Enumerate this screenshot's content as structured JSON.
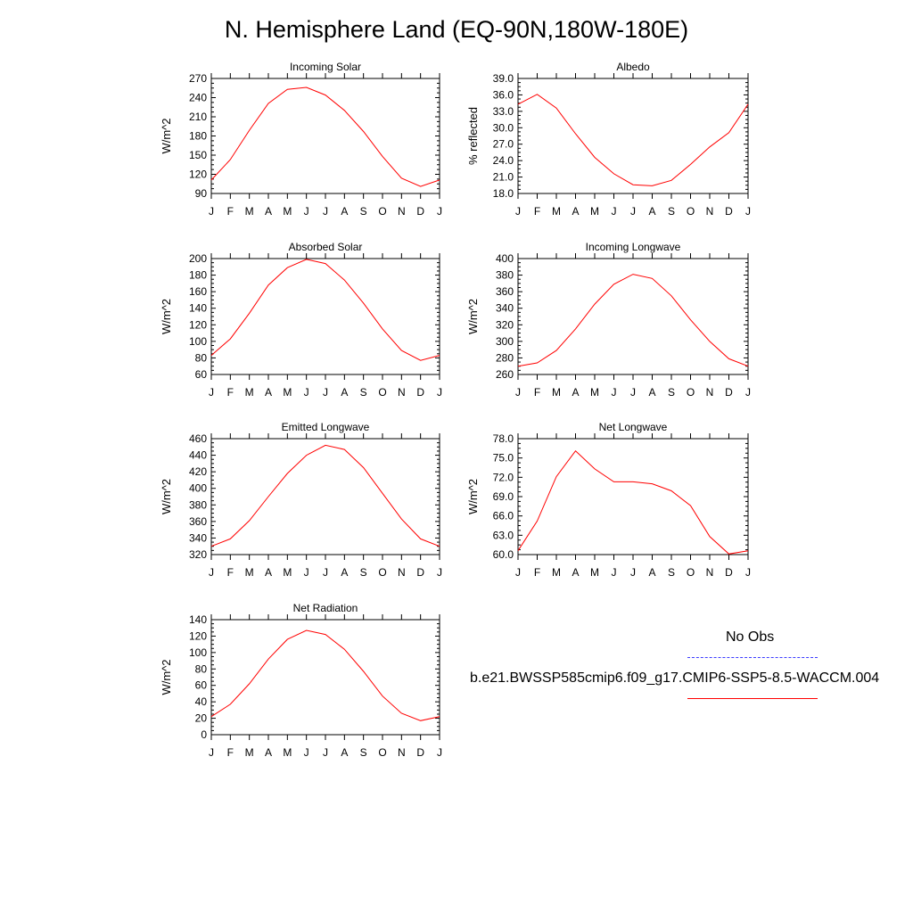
{
  "title": "N. Hemisphere Land (EQ-90N,180W-180E)",
  "legend": {
    "obs_label": "No Obs",
    "model_label": "b.e21.BWSSP585cmip6.f09_g17.CMIP6-SSP5-8.5-WACCM.004",
    "obs_color": "#3b3bff",
    "model_color": "#ff0000"
  },
  "chart_data": [
    {
      "type": "line",
      "title": "Incoming Solar",
      "ylabel": "W/m^2",
      "categories": [
        "J",
        "F",
        "M",
        "A",
        "M",
        "J",
        "J",
        "A",
        "S",
        "O",
        "N",
        "D",
        "J"
      ],
      "ylim": [
        90,
        270
      ],
      "yticks": [
        "90",
        "120",
        "150",
        "180",
        "210",
        "240",
        "270"
      ],
      "series": [
        {
          "values": [
            111,
            143,
            189,
            231,
            253,
            256,
            244,
            220,
            187,
            148,
            114,
            101,
            111
          ]
        }
      ]
    },
    {
      "type": "line",
      "title": "Albedo",
      "ylabel": "% reflected",
      "categories": [
        "J",
        "F",
        "M",
        "A",
        "M",
        "J",
        "J",
        "A",
        "S",
        "O",
        "N",
        "D",
        "J"
      ],
      "ylim": [
        18.0,
        39.0
      ],
      "yticks": [
        "18.0",
        "21.0",
        "24.0",
        "27.0",
        "30.0",
        "33.0",
        "36.0",
        "39.0"
      ],
      "series": [
        {
          "values": [
            34.3,
            36.1,
            33.6,
            28.9,
            24.6,
            21.6,
            19.6,
            19.4,
            20.4,
            23.3,
            26.5,
            29.1,
            34.3
          ]
        }
      ]
    },
    {
      "type": "line",
      "title": "Absorbed Solar",
      "ylabel": "W/m^2",
      "categories": [
        "J",
        "F",
        "M",
        "A",
        "M",
        "J",
        "J",
        "A",
        "S",
        "O",
        "N",
        "D",
        "J"
      ],
      "ylim": [
        60,
        200
      ],
      "yticks": [
        "60",
        "80",
        "100",
        "120",
        "140",
        "160",
        "180",
        "200"
      ],
      "series": [
        {
          "values": [
            83,
            103,
            134,
            168,
            189,
            199,
            194,
            174,
            146,
            115,
            89,
            77,
            83
          ]
        }
      ]
    },
    {
      "type": "line",
      "title": "Incoming Longwave",
      "ylabel": "W/m^2",
      "categories": [
        "J",
        "F",
        "M",
        "A",
        "M",
        "J",
        "J",
        "A",
        "S",
        "O",
        "N",
        "D",
        "J"
      ],
      "ylim": [
        260,
        400
      ],
      "yticks": [
        "260",
        "280",
        "300",
        "320",
        "340",
        "360",
        "380",
        "400"
      ],
      "series": [
        {
          "values": [
            270,
            274,
            289,
            315,
            345,
            369,
            381,
            376,
            355,
            326,
            300,
            279,
            270
          ]
        }
      ]
    },
    {
      "type": "line",
      "title": "Emitted Longwave",
      "ylabel": "W/m^2",
      "categories": [
        "J",
        "F",
        "M",
        "A",
        "M",
        "J",
        "J",
        "A",
        "S",
        "O",
        "N",
        "D",
        "J"
      ],
      "ylim": [
        320,
        460
      ],
      "yticks": [
        "320",
        "340",
        "360",
        "380",
        "400",
        "420",
        "440",
        "460"
      ],
      "series": [
        {
          "values": [
            330,
            339,
            361,
            390,
            418,
            440,
            452,
            447,
            425,
            394,
            363,
            339,
            330
          ]
        }
      ]
    },
    {
      "type": "line",
      "title": "Net Longwave",
      "ylabel": "W/m^2",
      "categories": [
        "J",
        "F",
        "M",
        "A",
        "M",
        "J",
        "J",
        "A",
        "S",
        "O",
        "N",
        "D",
        "J"
      ],
      "ylim": [
        60.0,
        78.0
      ],
      "yticks": [
        "60.0",
        "63.0",
        "66.0",
        "69.0",
        "72.0",
        "75.0",
        "78.0"
      ],
      "series": [
        {
          "values": [
            60.6,
            65.2,
            72.1,
            76.1,
            73.3,
            71.3,
            71.3,
            71.0,
            69.9,
            67.6,
            62.8,
            60.1,
            60.6
          ]
        }
      ]
    },
    {
      "type": "line",
      "title": "Net Radiation",
      "ylabel": "W/m^2",
      "categories": [
        "J",
        "F",
        "M",
        "A",
        "M",
        "J",
        "J",
        "A",
        "S",
        "O",
        "N",
        "D",
        "J"
      ],
      "ylim": [
        0,
        140
      ],
      "yticks": [
        "0",
        "20",
        "40",
        "60",
        "80",
        "100",
        "120",
        "140"
      ],
      "series": [
        {
          "values": [
            22,
            37,
            62,
            92,
            116,
            127,
            122,
            104,
            77,
            47,
            26,
            17,
            22
          ]
        }
      ]
    }
  ]
}
